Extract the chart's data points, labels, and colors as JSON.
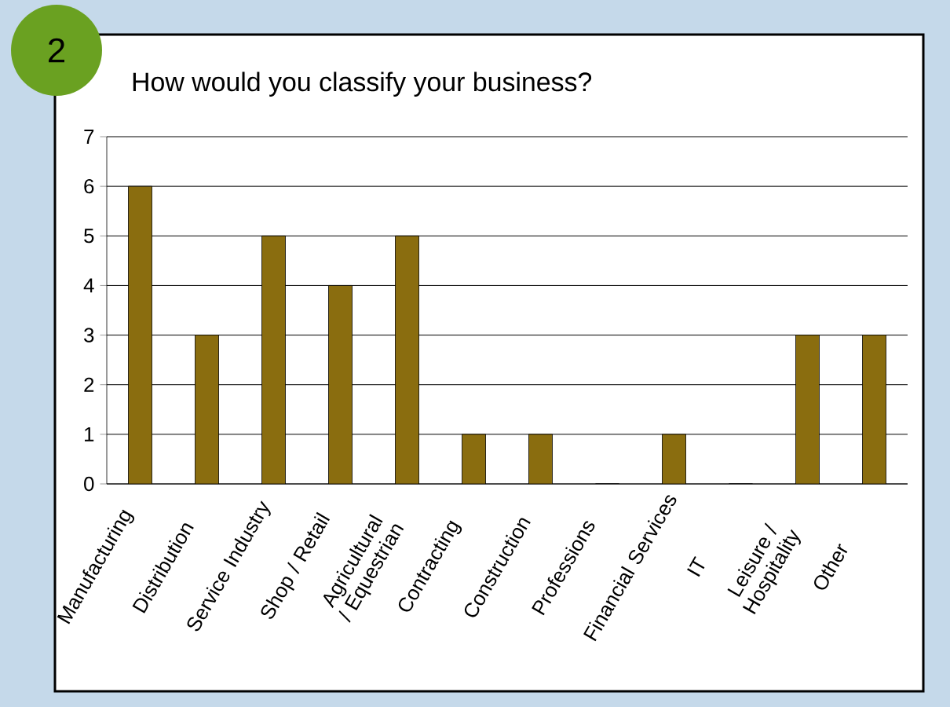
{
  "chart_data": {
    "type": "bar",
    "title": "How would you classify your business?",
    "annotations": [
      "2"
    ],
    "categories": [
      "Manufacturing",
      "Distribution",
      "Service Industry",
      "Shop / Retail",
      "Agricultural / Equestrian",
      "Contracting",
      "Construction",
      "Professions",
      "Financial Services",
      "IT",
      "Leisure / Hospitality",
      "Other"
    ],
    "values": [
      6,
      3,
      5,
      4,
      5,
      1,
      1,
      0,
      1,
      0,
      3,
      3
    ],
    "color": "#8a6d0f",
    "ylim": [
      0,
      7
    ],
    "yticks": [
      0,
      1,
      2,
      3,
      4,
      5,
      6,
      7
    ],
    "grid": "y"
  }
}
